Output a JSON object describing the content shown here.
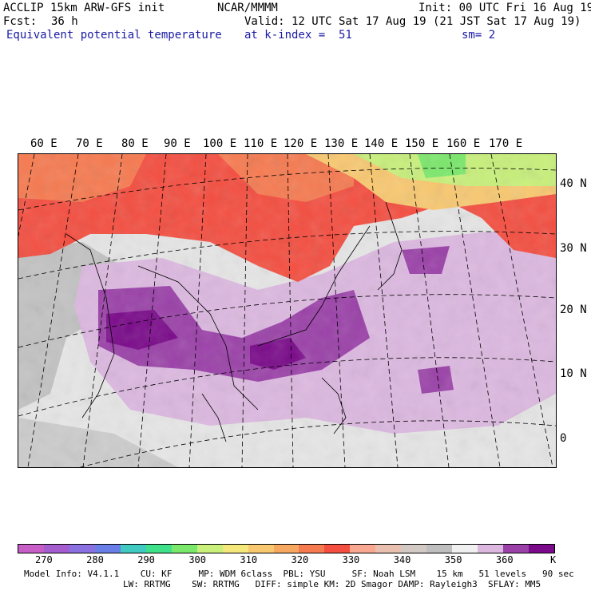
{
  "header": {
    "model": "ACCLIP 15km ARW-GFS init",
    "center": "NCAR/MMMM",
    "init": "Init: 00 UTC Fri 16 Aug 19",
    "fcst_label": "Fcst:",
    "fcst_value": "36 h",
    "valid": "Valid: 12 UTC Sat 17 Aug 19 (21 JST Sat 17 Aug 19)",
    "field": "Equivalent potential temperature",
    "level": "at k-index =  51",
    "smooth": "sm= 2"
  },
  "map": {
    "lon_labels": [
      "60 E",
      "70 E",
      "80 E",
      "90 E",
      "100 E",
      "110 E",
      "120 E",
      "130 E",
      "140 E",
      "150 E",
      "160 E",
      "170 E"
    ],
    "lat_labels": [
      "40 N",
      "30 N",
      "20 N",
      "10 N",
      "0"
    ]
  },
  "colorbar": {
    "colors": [
      "#c65ec6",
      "#a55ccf",
      "#8a70e0",
      "#6a7ee8",
      "#3fc9c0",
      "#3fe08a",
      "#7ae86a",
      "#c8f07a",
      "#f5e87a",
      "#f8c870",
      "#f6a860",
      "#f67a50",
      "#f44e40",
      "#f8a890",
      "#e9c0b0",
      "#d2c8c4",
      "#bebebe",
      "#f0f0f0",
      "#dcb8e0",
      "#9a40a8",
      "#7a0a8a"
    ],
    "ticks": [
      "270",
      "280",
      "290",
      "300",
      "310",
      "320",
      "330",
      "340",
      "350",
      "360"
    ],
    "unit": "K"
  },
  "model_info": {
    "line1": "Model Info: V4.1.1    CU: KF     MP: WDM 6class  PBL: YSU     SF: Noah LSM    15 km   51 levels   90 sec",
    "line2": "LW: RRTMG    SW: RRTMG   DIFF: simple KM: 2D Smagor DAMP: Rayleigh3  SFLAY: MM5"
  }
}
